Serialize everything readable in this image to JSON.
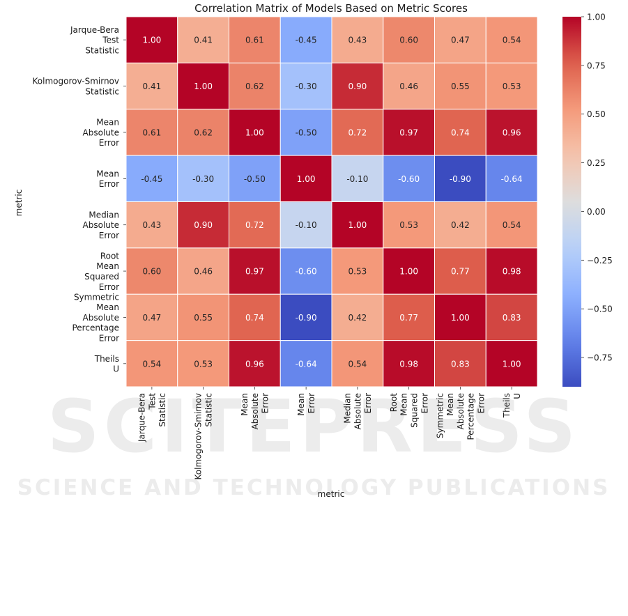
{
  "watermark": {
    "brand": "SCITEPRESS",
    "subtitle": "SCIENCE AND TECHNOLOGY PUBLICATIONS"
  },
  "chart_data": {
    "type": "heatmap",
    "title": "Correlation Matrix of Models Based on Metric Scores",
    "xlabel": "metric",
    "ylabel": "metric",
    "row_labels": [
      [
        "Jarque-Bera",
        "Test",
        "Statistic"
      ],
      [
        "Kolmogorov-Smirnov",
        "Statistic"
      ],
      [
        "Mean",
        "Absolute",
        "Error"
      ],
      [
        "Mean",
        "Error"
      ],
      [
        "Median",
        "Absolute",
        "Error"
      ],
      [
        "Root",
        "Mean",
        "Squared",
        "Error"
      ],
      [
        "Symmetric",
        "Mean",
        "Absolute",
        "Percentage",
        "Error"
      ],
      [
        "Theils",
        "U"
      ]
    ],
    "col_labels": [
      [
        "Jarque-Bera",
        "Test",
        "Statistic"
      ],
      [
        "Kolmogorov-Smirnov",
        "Statistic"
      ],
      [
        "Mean",
        "Absolute",
        "Error"
      ],
      [
        "Mean",
        "Error"
      ],
      [
        "Median",
        "Absolute",
        "Error"
      ],
      [
        "Root",
        "Mean",
        "Squared",
        "Error"
      ],
      [
        "Symmetric",
        "Mean",
        "Absolute",
        "Percentage",
        "Error"
      ],
      [
        "Theils",
        "U"
      ]
    ],
    "values": [
      [
        1.0,
        0.41,
        0.61,
        -0.45,
        0.43,
        0.6,
        0.47,
        0.54
      ],
      [
        0.41,
        1.0,
        0.62,
        -0.3,
        0.9,
        0.46,
        0.55,
        0.53
      ],
      [
        0.61,
        0.62,
        1.0,
        -0.5,
        0.72,
        0.97,
        0.74,
        0.96
      ],
      [
        -0.45,
        -0.3,
        -0.5,
        1.0,
        -0.1,
        -0.6,
        -0.9,
        -0.64
      ],
      [
        0.43,
        0.9,
        0.72,
        -0.1,
        1.0,
        0.53,
        0.42,
        0.54
      ],
      [
        0.6,
        0.46,
        0.97,
        -0.6,
        0.53,
        1.0,
        0.77,
        0.98
      ],
      [
        0.47,
        0.55,
        0.74,
        -0.9,
        0.42,
        0.77,
        1.0,
        0.83
      ],
      [
        0.54,
        0.53,
        0.96,
        -0.64,
        0.54,
        0.98,
        0.83,
        1.0
      ]
    ],
    "value_format_decimals": 2,
    "colormap": "coolwarm",
    "color_range": [
      -0.9,
      1.0
    ],
    "colorbar_ticks": [
      1.0,
      0.75,
      0.5,
      0.25,
      0.0,
      -0.25,
      -0.5,
      -0.75
    ],
    "colorbar_tick_labels": [
      "1.00",
      "0.75",
      "0.50",
      "0.25",
      "0.00",
      "−0.25",
      "−0.50",
      "−0.75"
    ],
    "grid_lines": "white"
  }
}
